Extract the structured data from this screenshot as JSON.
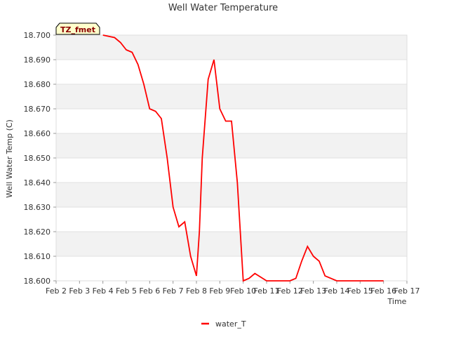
{
  "chart_data": {
    "type": "line",
    "title": "Well Water Temperature",
    "tag": "TZ_fmet",
    "xlabel": "Time",
    "ylabel": "Well Water Temp (C)",
    "ylim": [
      18.6,
      18.7
    ],
    "yticks": [
      "18.700",
      "18.690",
      "18.680",
      "18.670",
      "18.660",
      "18.650",
      "18.640",
      "18.630",
      "18.620",
      "18.610",
      "18.600"
    ],
    "xlim_days": [
      2,
      17
    ],
    "xticks": [
      "Feb 2",
      "Feb 3",
      "Feb 4",
      "Feb 5",
      "Feb 6",
      "Feb 7",
      "Feb 8",
      "Feb 9",
      "Feb 10",
      "Feb 11",
      "Feb 12",
      "Feb 13",
      "Feb 14",
      "Feb 15",
      "Feb 16",
      "Feb 17"
    ],
    "grid": true,
    "legend_position": "bottom-center",
    "series": [
      {
        "name": "water_T",
        "color": "#ff0000",
        "x": [
          "Feb 4 00:00",
          "Feb 4 12:00",
          "Feb 4 18:00",
          "Feb 5 00:00",
          "Feb 5 06:00",
          "Feb 5 12:00",
          "Feb 5 18:00",
          "Feb 6 00:00",
          "Feb 6 06:00",
          "Feb 6 12:00",
          "Feb 6 18:00",
          "Feb 7 00:00",
          "Feb 7 06:00",
          "Feb 7 12:00",
          "Feb 7 18:00",
          "Feb 8 00:00",
          "Feb 8 03:00",
          "Feb 8 06:00",
          "Feb 8 12:00",
          "Feb 8 18:00",
          "Feb 9 00:00",
          "Feb 9 06:00",
          "Feb 9 12:00",
          "Feb 9 18:00",
          "Feb 10 00:00",
          "Feb 10 06:00",
          "Feb 10 12:00",
          "Feb 11 00:00",
          "Feb 12 00:00",
          "Feb 12 06:00",
          "Feb 12 12:00",
          "Feb 12 18:00",
          "Feb 13 00:00",
          "Feb 13 06:00",
          "Feb 13 12:00",
          "Feb 14 00:00",
          "Feb 15 00:00",
          "Feb 16 00:00"
        ],
        "y": [
          18.7,
          18.699,
          18.697,
          18.694,
          18.693,
          18.688,
          18.68,
          18.67,
          18.669,
          18.666,
          18.65,
          18.63,
          18.622,
          18.624,
          18.61,
          18.602,
          18.62,
          18.65,
          18.682,
          18.69,
          18.67,
          18.665,
          18.665,
          18.64,
          18.6,
          18.601,
          18.603,
          18.6,
          18.6,
          18.601,
          18.608,
          18.614,
          18.61,
          18.608,
          18.602,
          18.6,
          18.6,
          18.6
        ]
      }
    ]
  }
}
